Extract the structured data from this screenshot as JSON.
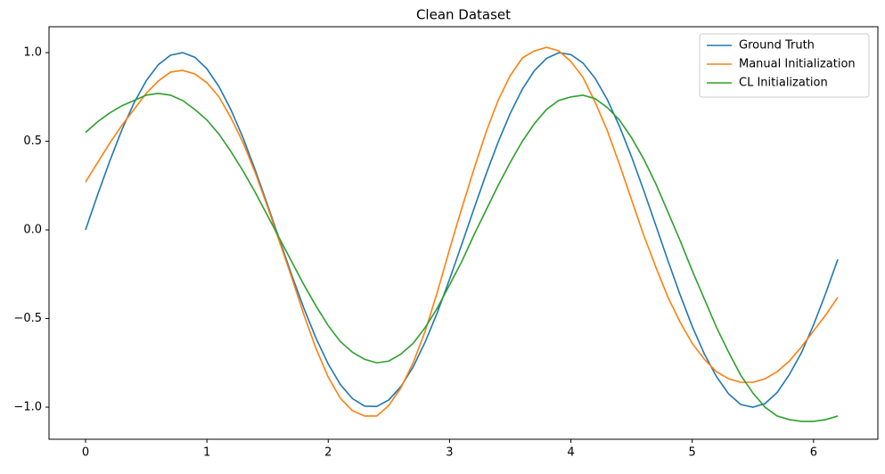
{
  "chart_data": {
    "type": "line",
    "title": "Clean Dataset",
    "x": [
      0,
      0.1,
      0.2,
      0.3,
      0.4,
      0.5,
      0.6,
      0.7,
      0.8,
      0.9,
      1.0,
      1.1,
      1.2,
      1.3,
      1.4,
      1.5,
      1.6,
      1.7,
      1.8,
      1.9,
      2.0,
      2.1,
      2.2,
      2.3,
      2.4,
      2.5,
      2.6,
      2.7,
      2.8,
      2.9,
      3.0,
      3.1,
      3.2,
      3.3,
      3.4,
      3.5,
      3.6,
      3.7,
      3.8,
      3.9,
      4.0,
      4.1,
      4.2,
      4.3,
      4.4,
      4.5,
      4.6,
      4.7,
      4.8,
      4.9,
      5.0,
      5.1,
      5.2,
      5.3,
      5.4,
      5.5,
      5.6,
      5.7,
      5.8,
      5.9,
      6.0,
      6.1,
      6.2
    ],
    "series": [
      {
        "name": "Ground Truth",
        "color": "#1f77b4",
        "values": [
          0,
          0.199,
          0.389,
          0.565,
          0.717,
          0.841,
          0.932,
          0.985,
          1.0,
          0.974,
          0.909,
          0.808,
          0.675,
          0.516,
          0.335,
          0.141,
          -0.058,
          -0.256,
          -0.443,
          -0.612,
          -0.757,
          -0.872,
          -0.952,
          -0.994,
          -0.996,
          -0.959,
          -0.883,
          -0.773,
          -0.631,
          -0.465,
          -0.279,
          -0.083,
          0.117,
          0.312,
          0.494,
          0.657,
          0.794,
          0.899,
          0.968,
          0.999,
          0.989,
          0.941,
          0.855,
          0.735,
          0.585,
          0.412,
          0.223,
          0.025,
          -0.174,
          -0.366,
          -0.544,
          -0.7,
          -0.828,
          -0.925,
          -0.985,
          -1.0,
          -0.98,
          -0.917,
          -0.817,
          -0.693,
          -0.536,
          -0.358,
          -0.166
        ]
      },
      {
        "name": "Manual Initialization",
        "color": "#ff7f0e",
        "values": [
          0.27,
          0.38,
          0.49,
          0.59,
          0.68,
          0.77,
          0.84,
          0.89,
          0.9,
          0.88,
          0.83,
          0.75,
          0.63,
          0.49,
          0.32,
          0.13,
          -0.07,
          -0.27,
          -0.48,
          -0.67,
          -0.83,
          -0.95,
          -1.02,
          -1.05,
          -1.05,
          -0.99,
          -0.89,
          -0.75,
          -0.57,
          -0.35,
          -0.11,
          0.12,
          0.34,
          0.55,
          0.73,
          0.87,
          0.97,
          1.01,
          1.03,
          1.01,
          0.95,
          0.86,
          0.72,
          0.56,
          0.37,
          0.17,
          -0.03,
          -0.21,
          -0.38,
          -0.52,
          -0.64,
          -0.73,
          -0.8,
          -0.84,
          -0.86,
          -0.86,
          -0.84,
          -0.8,
          -0.74,
          -0.66,
          -0.57,
          -0.48,
          -0.38
        ]
      },
      {
        "name": "CL Initialization",
        "color": "#2ca02c",
        "values": [
          0.55,
          0.61,
          0.66,
          0.7,
          0.73,
          0.76,
          0.77,
          0.76,
          0.73,
          0.68,
          0.62,
          0.54,
          0.44,
          0.33,
          0.21,
          0.08,
          -0.05,
          -0.18,
          -0.31,
          -0.43,
          -0.54,
          -0.63,
          -0.69,
          -0.73,
          -0.75,
          -0.74,
          -0.7,
          -0.64,
          -0.55,
          -0.44,
          -0.31,
          -0.18,
          -0.03,
          0.11,
          0.25,
          0.38,
          0.5,
          0.6,
          0.68,
          0.73,
          0.75,
          0.76,
          0.74,
          0.69,
          0.62,
          0.52,
          0.4,
          0.26,
          0.1,
          -0.06,
          -0.23,
          -0.39,
          -0.55,
          -0.69,
          -0.82,
          -0.92,
          -1.0,
          -1.05,
          -1.07,
          -1.08,
          -1.08,
          -1.07,
          -1.05
        ]
      }
    ],
    "xlim": [
      -0.301,
      6.53
    ],
    "ylim": [
      -1.181,
      1.146
    ],
    "xticks": [
      0,
      1,
      2,
      3,
      4,
      5,
      6
    ],
    "yticks": [
      {
        "value": -1.0,
        "label": "−1.0"
      },
      {
        "value": -0.5,
        "label": "−0.5"
      },
      {
        "value": 0,
        "label": "0.0"
      },
      {
        "value": 0.5,
        "label": "0.5"
      },
      {
        "value": 1.0,
        "label": "1.0"
      }
    ],
    "grid": false,
    "legend": "upper right"
  }
}
